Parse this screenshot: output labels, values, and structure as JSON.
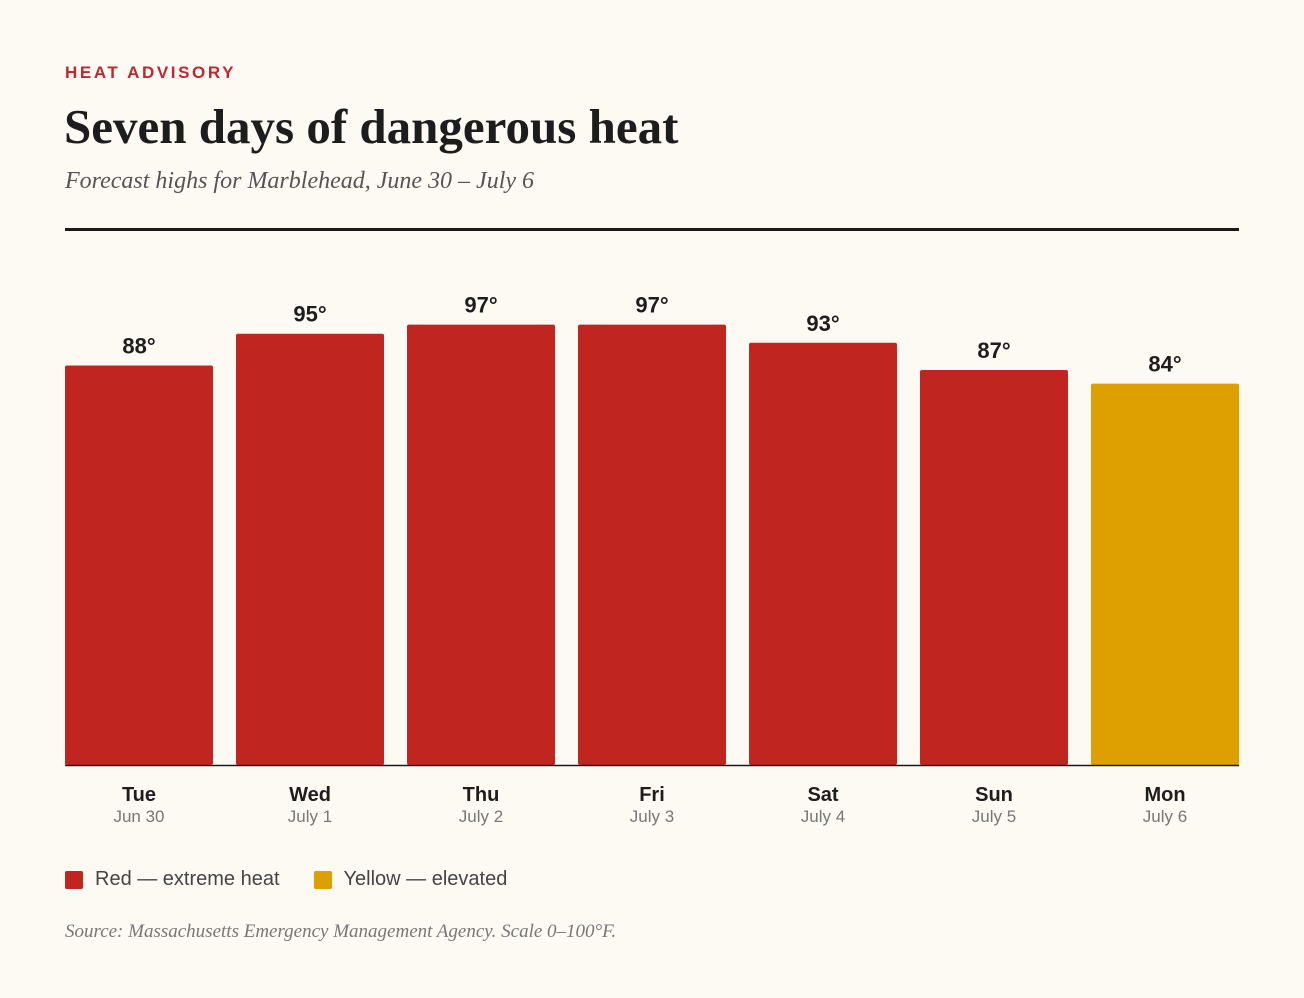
{
  "header": {
    "kicker": "HEAT ADVISORY",
    "title": "Seven days of dangerous heat",
    "subtitle": "Forecast highs for Marblehead, June 30 – July 6"
  },
  "colors": {
    "background": "#fdfaf4",
    "red": "#c1251f",
    "yellow": "#dea000",
    "text": "#1d1d1d"
  },
  "chart_data": {
    "type": "bar",
    "categories": [
      "Tue",
      "Wed",
      "Thu",
      "Fri",
      "Sat",
      "Sun",
      "Mon"
    ],
    "dates": [
      "Jun 30",
      "July 1",
      "July 2",
      "July 3",
      "July 4",
      "July 5",
      "July 6"
    ],
    "values": [
      88,
      95,
      97,
      97,
      93,
      87,
      84
    ],
    "value_labels": [
      "88°",
      "95°",
      "97°",
      "97°",
      "93°",
      "87°",
      "84°"
    ],
    "levels": [
      "red",
      "red",
      "red",
      "red",
      "red",
      "red",
      "yellow"
    ],
    "ylim": [
      0,
      100
    ],
    "unit": "°F",
    "grid": false,
    "legend_placement": "bottom-left"
  },
  "legend": {
    "items": [
      {
        "label": "Red — extreme heat",
        "color": "#c1251f"
      },
      {
        "label": "Yellow — elevated",
        "color": "#dea000"
      }
    ]
  },
  "footer": {
    "source": "Source: Massachusetts Emergency Management Agency. Scale 0–100°F."
  }
}
